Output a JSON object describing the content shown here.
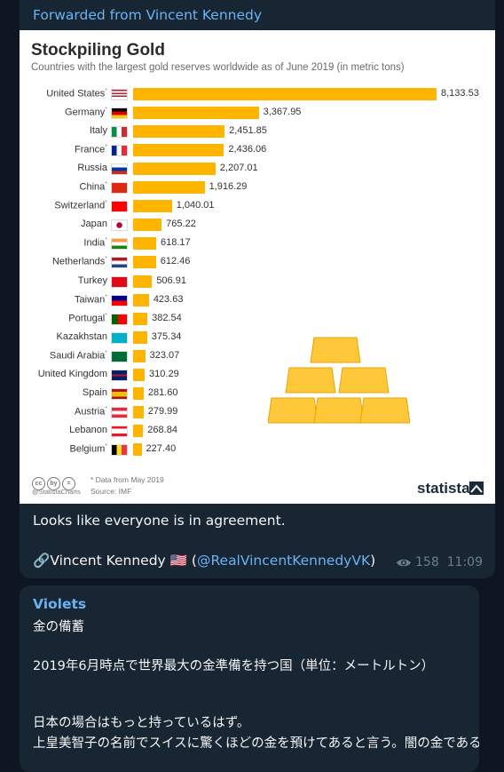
{
  "message1": {
    "forwarded_from": "Forwarded from Vincent Kennedy",
    "text": "Looks like everyone is in agreement.",
    "signature_link_emoji": "🔗",
    "signature_name": "Vincent Kennedy 🇺🇸",
    "signature_handle_open": "(",
    "signature_handle": "@RealVincentKennedyVK",
    "signature_handle_close": ")",
    "views": "158",
    "time": "11:09",
    "views_icon": "eye-icon"
  },
  "image": {
    "footnote": "* Data from May 2019",
    "source": "Source: IMF",
    "handle": "@StatistaCharts",
    "brand": "statista",
    "license_icons": [
      "cc",
      "by",
      "="
    ]
  },
  "chart_data": {
    "type": "bar",
    "orientation": "horizontal",
    "title": "Stockpiling Gold",
    "subtitle": "Countries with the largest gold reserves worldwide as of June 2019 (in metric tons)",
    "categories": [
      "United States",
      "Germany",
      "Italy",
      "France",
      "Russia",
      "China",
      "Switzerland",
      "Japan",
      "India",
      "Netherlands",
      "Turkey",
      "Taiwan",
      "Portugal",
      "Kazakhstan",
      "Saudi Arabia",
      "United Kingdom",
      "Spain",
      "Austria",
      "Lebanon",
      "Belgium"
    ],
    "asterisk": [
      true,
      true,
      false,
      true,
      false,
      true,
      true,
      false,
      true,
      true,
      false,
      true,
      true,
      false,
      true,
      false,
      false,
      true,
      false,
      true
    ],
    "values": [
      8133.53,
      3367.95,
      2451.85,
      2436.06,
      2207.01,
      1916.29,
      1040.01,
      765.22,
      618.17,
      612.46,
      506.91,
      423.63,
      382.54,
      375.34,
      323.07,
      310.29,
      281.6,
      279.99,
      268.84,
      227.4
    ],
    "value_labels": [
      "8,133.53",
      "3,367.95",
      "2,451.85",
      "2,436.06",
      "2,207.01",
      "1,916.29",
      "1,040.01",
      "765.22",
      "618.17",
      "612.46",
      "506.91",
      "423.63",
      "382.54",
      "375.34",
      "323.07",
      "310.29",
      "281.60",
      "279.99",
      "268.84",
      "227.40"
    ],
    "bar_color": "#ffb400",
    "grid": false,
    "legend": "none"
  },
  "message2": {
    "sender": "Violets",
    "lines": [
      "金の備蓄",
      "2019年6月時点で世界最大の金準備を持つ国（単位：メートルトン）",
      "日本の場合はもっと持っているはず。",
      "上皇美智子の名前でスイスに驚くほどの金を預けてあると言う。闇の金である。"
    ]
  }
}
